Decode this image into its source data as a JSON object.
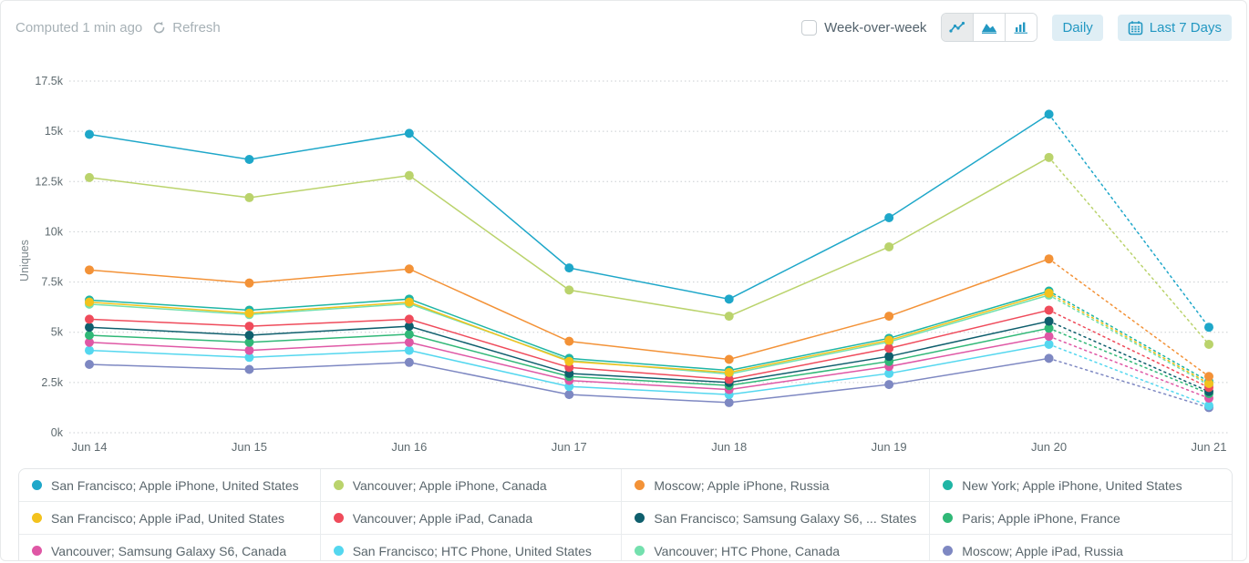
{
  "header": {
    "computed_status": "Computed 1 min ago",
    "refresh_label": "Refresh",
    "week_over_week_label": "Week-over-week",
    "daily_label": "Daily",
    "date_range_label": "Last 7 Days",
    "chart_type_icons": [
      "line-chart-icon",
      "area-chart-icon",
      "bar-chart-icon"
    ],
    "selected_chart_type": "line",
    "accent_color": "#2398c2",
    "button_bg_color": "#dfeef5"
  },
  "chart_data": {
    "type": "line",
    "title": "",
    "xlabel": "",
    "ylabel": "Uniques",
    "ylim": [
      0,
      17500
    ],
    "y_ticks": [
      {
        "label": "0k",
        "value": 0
      },
      {
        "label": "2.5k",
        "value": 2500
      },
      {
        "label": "5k",
        "value": 5000
      },
      {
        "label": "7.5k",
        "value": 7500
      },
      {
        "label": "10k",
        "value": 10000
      },
      {
        "label": "12.5k",
        "value": 12500
      },
      {
        "label": "15k",
        "value": 15000
      },
      {
        "label": "17.5k",
        "value": 17500
      }
    ],
    "categories": [
      "Jun 14",
      "Jun 15",
      "Jun 16",
      "Jun 17",
      "Jun 18",
      "Jun 19",
      "Jun 20",
      "Jun 21"
    ],
    "grid": "horizontal-dotted",
    "legend_position": "bottom",
    "note": "final segment Jun 20 to Jun 21 rendered dotted (incomplete day)",
    "series": [
      {
        "name": "San Francisco; Apple iPhone, United States",
        "color": "#1ea7c9",
        "values": [
          14850,
          13600,
          14900,
          8200,
          6650,
          10700,
          15850,
          5250
        ]
      },
      {
        "name": "Vancouver; Apple iPhone, Canada",
        "color": "#bad36c",
        "values": [
          12700,
          11700,
          12800,
          7100,
          5800,
          9250,
          13700,
          4400
        ]
      },
      {
        "name": "Moscow; Apple iPhone, Russia",
        "color": "#f39237",
        "values": [
          8100,
          7450,
          8150,
          4550,
          3650,
          5800,
          8650,
          2800
        ]
      },
      {
        "name": "New York; Apple iPhone, United States",
        "color": "#1fb5a5",
        "values": [
          6600,
          6100,
          6650,
          3700,
          3100,
          4700,
          7050,
          2550
        ]
      },
      {
        "name": "San Francisco; Apple iPad, United States",
        "color": "#f3c21d",
        "values": [
          6500,
          5950,
          6500,
          3550,
          3000,
          4600,
          6950,
          2450
        ]
      },
      {
        "name": "Vancouver; Apple iPad, Canada",
        "color": "#ef4b5b",
        "values": [
          5650,
          5300,
          5650,
          3250,
          2650,
          4200,
          6100,
          2250
        ]
      },
      {
        "name": "San Francisco; Samsung Galaxy S6, ...  States",
        "color": "#0f5f6d",
        "values": [
          5250,
          4850,
          5300,
          2950,
          2500,
          3800,
          5550,
          2050
        ]
      },
      {
        "name": "Paris; Apple iPhone, France",
        "color": "#30b877",
        "values": [
          4850,
          4500,
          4900,
          2800,
          2350,
          3550,
          5200,
          1950
        ]
      },
      {
        "name": "Vancouver; Samsung Galaxy S6, Canada",
        "color": "#df57a5",
        "values": [
          4500,
          4100,
          4500,
          2600,
          2150,
          3300,
          4800,
          1720
        ]
      },
      {
        "name": "San Francisco; HTC Phone, United States",
        "color": "#54d7ef",
        "values": [
          4100,
          3750,
          4100,
          2300,
          1900,
          2950,
          4400,
          1350
        ]
      },
      {
        "name": "Vancouver; HTC Phone, Canada",
        "color": "#74e0ae",
        "values": [
          6400,
          5880,
          6420,
          3600,
          2920,
          4520,
          6850,
          2380
        ]
      },
      {
        "name": "Moscow; Apple iPad, Russia",
        "color": "#7e88c2",
        "values": [
          3400,
          3150,
          3500,
          1900,
          1500,
          2400,
          3700,
          1250
        ]
      }
    ]
  }
}
